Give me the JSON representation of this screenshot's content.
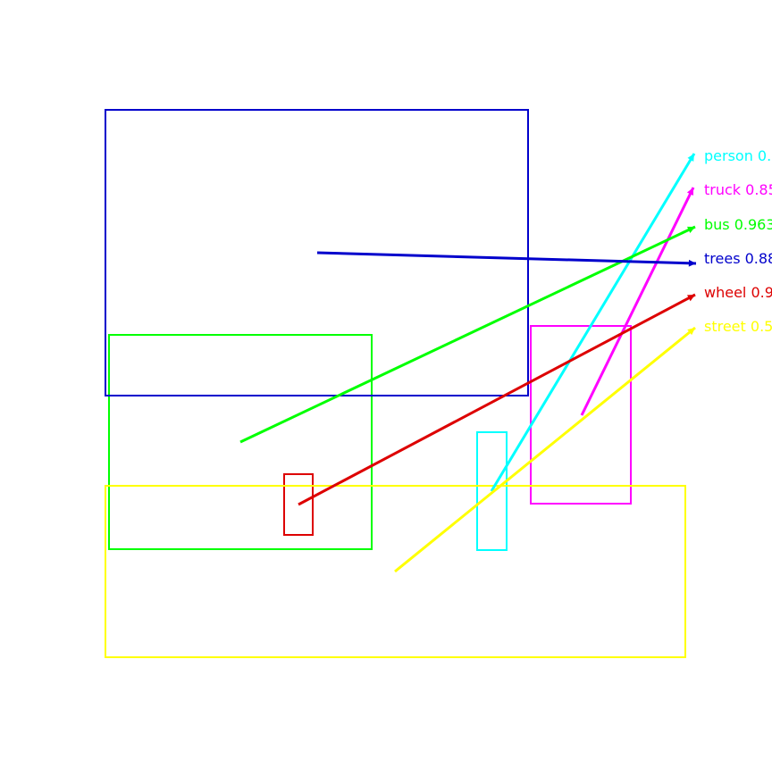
{
  "detections": [
    {
      "label": "person 0.",
      "color": "#00ffff"
    },
    {
      "label": "truck 0.85",
      "color": "#ff00ff"
    },
    {
      "label": "bus 0.963",
      "color": "#00ff00"
    },
    {
      "label": "trees 0.88",
      "color": "#0000cc"
    },
    {
      "label": "wheel 0.9",
      "color": "#dd0000"
    },
    {
      "label": "street 0.5",
      "color": "#ffff00"
    }
  ]
}
